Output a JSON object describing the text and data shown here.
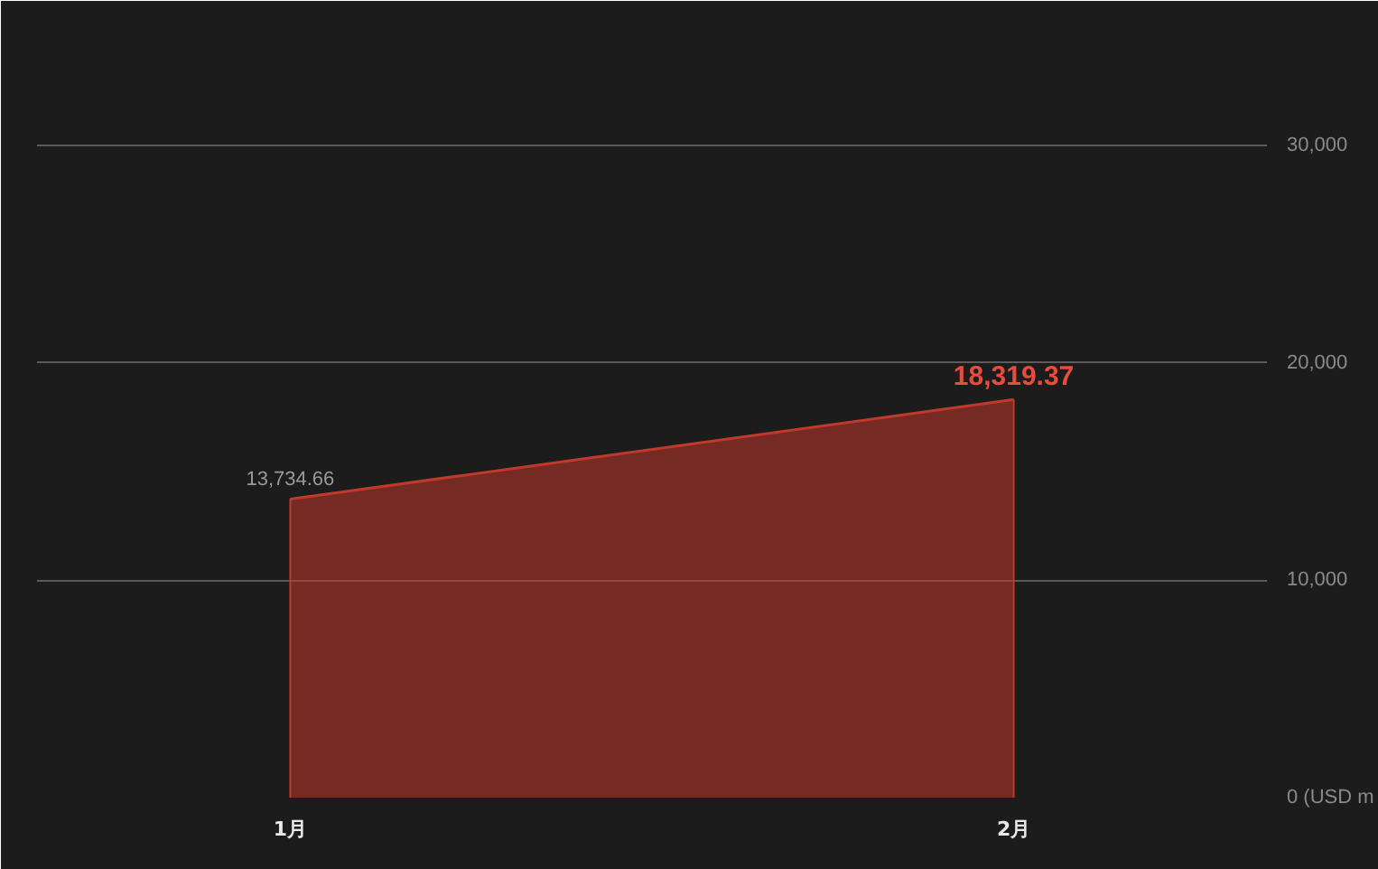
{
  "chart_data": {
    "type": "area",
    "categories": [
      "1月",
      "2月"
    ],
    "series": [
      {
        "color": "#c0392b",
        "values": [
          13734.66,
          18319.37
        ],
        "value_labels": [
          "13,734.66",
          "18,319.37"
        ]
      }
    ],
    "ylim": [
      0,
      35000
    ],
    "yticks": [
      {
        "value": 0,
        "label": "0 (USD m"
      },
      {
        "value": 10000,
        "label": "10,000"
      },
      {
        "value": 20000,
        "label": "20,000"
      },
      {
        "value": 30000,
        "label": "30,000"
      }
    ],
    "grid": "y"
  }
}
